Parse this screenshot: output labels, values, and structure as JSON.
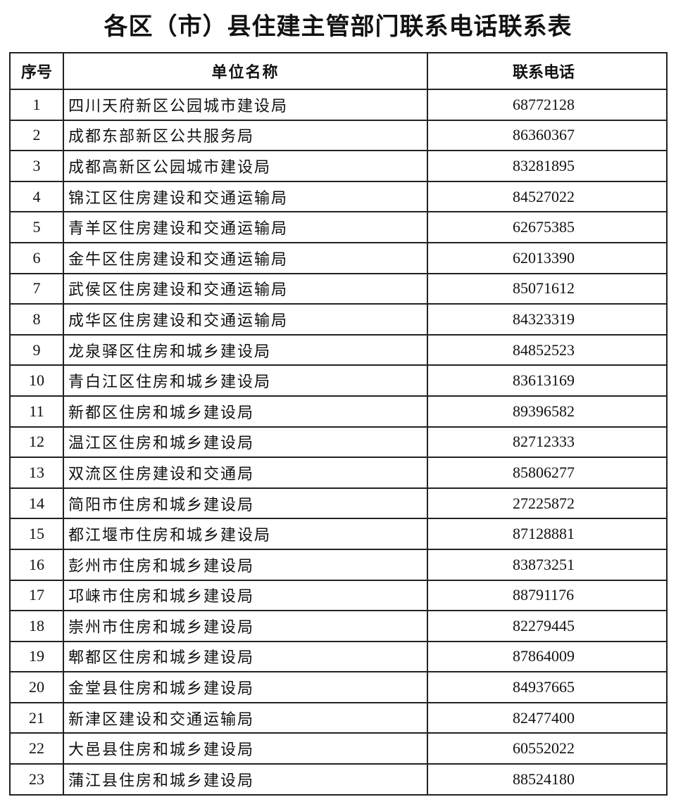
{
  "title": "各区（市）县住建主管部门联系电话联系表",
  "table": {
    "headers": [
      "序号",
      "单位名称",
      "联系电话"
    ],
    "rows": [
      [
        "1",
        "四川天府新区公园城市建设局",
        "68772128"
      ],
      [
        "2",
        "成都东部新区公共服务局",
        "86360367"
      ],
      [
        "3",
        "成都高新区公园城市建设局",
        "83281895"
      ],
      [
        "4",
        "锦江区住房建设和交通运输局",
        "84527022"
      ],
      [
        "5",
        "青羊区住房建设和交通运输局",
        "62675385"
      ],
      [
        "6",
        "金牛区住房建设和交通运输局",
        "62013390"
      ],
      [
        "7",
        "武侯区住房建设和交通运输局",
        "85071612"
      ],
      [
        "8",
        "成华区住房建设和交通运输局",
        "84323319"
      ],
      [
        "9",
        "龙泉驿区住房和城乡建设局",
        "84852523"
      ],
      [
        "10",
        "青白江区住房和城乡建设局",
        "83613169"
      ],
      [
        "11",
        "新都区住房和城乡建设局",
        "89396582"
      ],
      [
        "12",
        "温江区住房和城乡建设局",
        "82712333"
      ],
      [
        "13",
        "双流区住房建设和交通局",
        "85806277"
      ],
      [
        "14",
        "简阳市住房和城乡建设局",
        "27225872"
      ],
      [
        "15",
        "都江堰市住房和城乡建设局",
        "87128881"
      ],
      [
        "16",
        "彭州市住房和城乡建设局",
        "83873251"
      ],
      [
        "17",
        "邛崃市住房和城乡建设局",
        "88791176"
      ],
      [
        "18",
        "崇州市住房和城乡建设局",
        "82279445"
      ],
      [
        "19",
        "郫都区住房和城乡建设局",
        "87864009"
      ],
      [
        "20",
        "金堂县住房和城乡建设局",
        "84937665"
      ],
      [
        "21",
        "新津区建设和交通运输局",
        "82477400"
      ],
      [
        "22",
        "大邑县住房和城乡建设局",
        "60552022"
      ],
      [
        "23",
        "蒲江县住房和城乡建设局",
        "88524180"
      ]
    ]
  }
}
